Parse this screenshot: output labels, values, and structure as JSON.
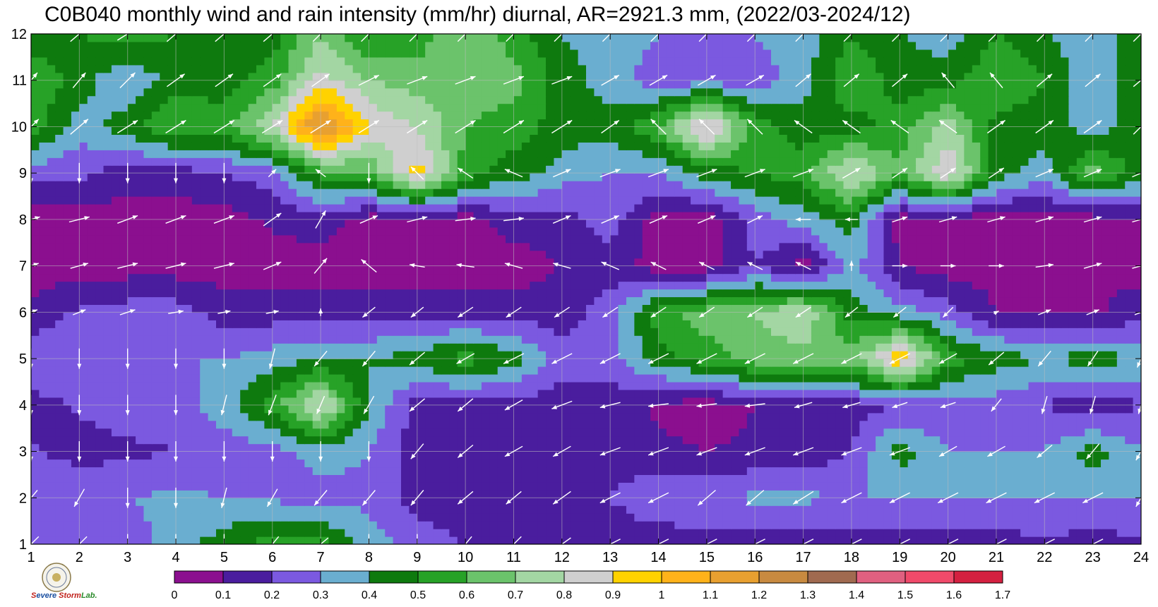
{
  "chart_data": {
    "type": "heatmap",
    "title": "C0B040 monthly wind and rain intensity (mm/hr) diurnal, AR=2921.3 mm, (2022/03-2024/12)",
    "xlabel": "",
    "ylabel": "",
    "x_ticks": [
      1,
      2,
      3,
      4,
      5,
      6,
      7,
      8,
      9,
      10,
      11,
      12,
      13,
      14,
      15,
      16,
      17,
      18,
      19,
      20,
      21,
      22,
      23,
      24
    ],
    "y_ticks": [
      1,
      2,
      3,
      4,
      5,
      6,
      7,
      8,
      9,
      10,
      11,
      12
    ],
    "xlim": [
      1,
      24
    ],
    "ylim": [
      1,
      12
    ],
    "grid": true,
    "colorbar": {
      "levels": [
        "0",
        "0.1",
        "0.2",
        "0.3",
        "0.4",
        "0.5",
        "0.6",
        "0.7",
        "0.8",
        "0.9",
        "1",
        "1.1",
        "1.2",
        "1.3",
        "1.4",
        "1.5",
        "1.6",
        "1.7"
      ],
      "colors": [
        "#8b0f8f",
        "#4a1d9e",
        "#7b59e0",
        "#6aaed0",
        "#0e7a0e",
        "#27a227",
        "#6bc36b",
        "#a3d6a3",
        "#cfcfcf",
        "#ffd200",
        "#ffb21a",
        "#e8a030",
        "#c88a40",
        "#a06a50",
        "#e06080",
        "#f04a6a",
        "#d42040"
      ]
    },
    "rain_intensity": [
      [
        0.25,
        0.25,
        0.25,
        0.35,
        0.45,
        0.55,
        0.55,
        0.35,
        0.25,
        0.2,
        0.1,
        0.12,
        0.12,
        0.12,
        0.15,
        0.12,
        0.12,
        0.15,
        0.15,
        0.15,
        0.15,
        0.18,
        0.15,
        0.18
      ],
      [
        0.3,
        0.3,
        0.3,
        0.32,
        0.3,
        0.28,
        0.25,
        0.28,
        0.15,
        0.15,
        0.12,
        0.15,
        0.2,
        0.3,
        0.3,
        0.32,
        0.32,
        0.3,
        0.3,
        0.3,
        0.3,
        0.3,
        0.3,
        0.3
      ],
      [
        0.22,
        0.15,
        0.18,
        0.2,
        0.25,
        0.25,
        0.35,
        0.3,
        0.15,
        0.15,
        0.15,
        0.15,
        0.15,
        0.12,
        0.1,
        0.12,
        0.12,
        0.2,
        0.45,
        0.3,
        0.3,
        0.3,
        0.45,
        0.3
      ],
      [
        0.15,
        0.22,
        0.25,
        0.25,
        0.35,
        0.55,
        0.85,
        0.4,
        0.15,
        0.15,
        0.15,
        0.15,
        0.15,
        0.08,
        0.05,
        0.1,
        0.15,
        0.15,
        0.2,
        0.22,
        0.25,
        0.2,
        0.12,
        0.2
      ],
      [
        0.3,
        0.3,
        0.3,
        0.3,
        0.3,
        0.35,
        0.4,
        0.4,
        0.45,
        0.55,
        0.45,
        0.25,
        0.25,
        0.45,
        0.55,
        0.65,
        0.65,
        0.65,
        1.0,
        0.55,
        0.45,
        0.4,
        0.45,
        0.4
      ],
      [
        0.12,
        0.22,
        0.25,
        0.25,
        0.15,
        0.15,
        0.15,
        0.15,
        0.15,
        0.15,
        0.15,
        0.15,
        0.25,
        0.55,
        0.65,
        0.7,
        0.8,
        0.45,
        0.35,
        0.25,
        0.1,
        0.08,
        0.08,
        0.15
      ],
      [
        0.05,
        0.05,
        0.05,
        0.05,
        0.05,
        0.05,
        0.05,
        0.05,
        0.05,
        0.05,
        0.05,
        0.1,
        0.15,
        0.05,
        0.05,
        0.2,
        0.05,
        0.35,
        0.1,
        0.05,
        0.05,
        0.05,
        0.1,
        0.05
      ],
      [
        0.05,
        0.05,
        0.05,
        0.05,
        0.05,
        0.12,
        0.15,
        0.05,
        0.05,
        0.05,
        0.15,
        0.15,
        0.25,
        0.05,
        0.05,
        0.25,
        0.35,
        0.45,
        0.05,
        0.05,
        0.05,
        0.05,
        0.05,
        0.1
      ],
      [
        0.25,
        0.22,
        0.15,
        0.15,
        0.2,
        0.25,
        0.55,
        0.6,
        0.95,
        0.55,
        0.45,
        0.35,
        0.3,
        0.3,
        0.45,
        0.5,
        0.55,
        0.85,
        0.6,
        0.9,
        0.45,
        0.35,
        0.65,
        0.45
      ],
      [
        0.55,
        0.35,
        0.45,
        0.6,
        0.55,
        0.8,
        1.25,
        0.9,
        0.8,
        0.6,
        0.55,
        0.45,
        0.45,
        0.6,
        0.95,
        0.55,
        0.45,
        0.45,
        0.55,
        0.75,
        0.45,
        0.45,
        0.35,
        0.45
      ],
      [
        0.6,
        0.45,
        0.3,
        0.45,
        0.45,
        0.55,
        0.85,
        0.7,
        0.65,
        0.65,
        0.65,
        0.45,
        0.35,
        0.25,
        0.25,
        0.25,
        0.35,
        0.6,
        0.45,
        0.45,
        0.6,
        0.5,
        0.3,
        0.5
      ],
      [
        0.4,
        0.5,
        0.55,
        0.5,
        0.5,
        0.45,
        0.7,
        0.5,
        0.55,
        0.7,
        0.55,
        0.4,
        0.35,
        0.3,
        0.3,
        0.3,
        0.35,
        0.5,
        0.4,
        0.35,
        0.5,
        0.4,
        0.35,
        0.45
      ]
    ],
    "wind_direction_note_free": true,
    "wind_u": [
      [
        -0.6,
        -0.6,
        0,
        0,
        0,
        -0.5,
        -0.6,
        0,
        0,
        -0.5,
        -0.6,
        -0.7,
        -0.8,
        -0.8,
        -0.8,
        -0.8,
        -0.8,
        -0.8,
        -0.8,
        -0.8,
        -0.8,
        -0.8,
        -0.8,
        -0.6
      ],
      [
        -0.5,
        -0.4,
        0,
        0,
        -0.2,
        -0.4,
        -0.5,
        -0.5,
        -0.5,
        -0.6,
        -0.6,
        -0.7,
        -0.8,
        -0.8,
        -0.7,
        -0.7,
        -0.8,
        -0.8,
        -0.8,
        -0.8,
        -0.8,
        -0.8,
        -0.8,
        -0.4
      ],
      [
        0,
        0,
        0,
        0,
        0,
        0,
        0,
        0,
        -0.5,
        -0.6,
        -0.7,
        -0.7,
        -0.8,
        -0.8,
        -0.8,
        -0.8,
        -0.8,
        -0.8,
        -0.8,
        -0.7,
        -0.7,
        -0.6,
        -0.5,
        -0.4
      ],
      [
        0,
        0,
        0,
        0,
        -0.2,
        -0.3,
        -0.3,
        -0.4,
        -0.6,
        -0.6,
        -0.7,
        -0.8,
        -0.8,
        -0.8,
        -0.8,
        -0.8,
        -0.7,
        -0.7,
        -0.6,
        -0.6,
        -0.4,
        -0.2,
        -0.2,
        -0.2
      ],
      [
        0,
        0,
        0,
        0,
        0,
        -0.2,
        -0.5,
        -0.5,
        -0.6,
        -0.7,
        -0.8,
        -0.8,
        -0.8,
        -0.8,
        -0.8,
        -0.8,
        -0.8,
        -0.8,
        -0.8,
        -0.7,
        -0.6,
        -0.5,
        -0.4,
        -0.3
      ],
      [
        0.5,
        0.5,
        0.6,
        0.6,
        0.5,
        0.5,
        0,
        -0.5,
        -0.5,
        -0.6,
        -0.6,
        -0.6,
        -0.6,
        -0.6,
        -0.6,
        -0.6,
        -0.6,
        -0.5,
        -0.5,
        -0.4,
        0.2,
        0.5,
        0.5,
        0.5
      ],
      [
        0.6,
        0.7,
        0.8,
        0.8,
        0.8,
        0.7,
        0.5,
        -0.6,
        -0.6,
        -0.7,
        -0.7,
        -0.7,
        -0.7,
        -0.6,
        -0.6,
        -0.6,
        -0.6,
        0,
        0.6,
        0.6,
        0.6,
        0.7,
        0.7,
        0.7
      ],
      [
        0.7,
        0.8,
        0.8,
        0.8,
        0.8,
        0.7,
        0.4,
        0.7,
        0.8,
        0.8,
        0.8,
        0.7,
        0.7,
        0.7,
        0.7,
        0.6,
        -0.6,
        -0.5,
        0.6,
        0.7,
        0.7,
        0.7,
        0.7,
        0.7
      ],
      [
        0,
        0,
        0,
        0,
        0,
        0.3,
        -0.4,
        0,
        -0.5,
        -0.6,
        -0.7,
        0.7,
        0.8,
        0.8,
        0.8,
        0.8,
        0.8,
        0.7,
        0.6,
        0.6,
        0.6,
        0.7,
        0.7,
        0.7
      ],
      [
        0.6,
        0.7,
        0.8,
        0.8,
        0.8,
        0.8,
        0.8,
        0.8,
        0.8,
        0.8,
        0.8,
        0.8,
        0.7,
        -0.6,
        -0.6,
        -0.6,
        -0.7,
        -0.7,
        -0.7,
        -0.7,
        0.7,
        0.7,
        0.7,
        0.6
      ],
      [
        0.5,
        0.5,
        0.6,
        0.7,
        0.7,
        0.7,
        0.7,
        0.8,
        0.8,
        0.8,
        0.8,
        0.8,
        0.7,
        0.7,
        0.7,
        0.7,
        0.6,
        0.6,
        0.6,
        -0.5,
        -0.5,
        0.6,
        0.6,
        0.6
      ],
      [
        0.6,
        0.7,
        0.8,
        0.7,
        0.7,
        0.7,
        0.6,
        0.6,
        0.6,
        0.6,
        0.6,
        0.6,
        0.6,
        0.6,
        0.6,
        0.6,
        0.6,
        0.6,
        0.6,
        0.6,
        0.6,
        0.6,
        0.6,
        0.6
      ]
    ],
    "wind_v": [
      [
        -0.6,
        -0.6,
        -0.8,
        -0.8,
        -0.8,
        -0.6,
        -0.5,
        -0.8,
        -0.8,
        -0.6,
        -0.6,
        -0.5,
        -0.4,
        -0.4,
        -0.4,
        -0.4,
        -0.4,
        -0.4,
        -0.4,
        -0.4,
        -0.4,
        -0.4,
        -0.4,
        -0.6
      ],
      [
        -0.6,
        -0.7,
        -0.8,
        -0.8,
        -0.8,
        -0.7,
        -0.6,
        -0.6,
        -0.6,
        -0.5,
        -0.5,
        -0.5,
        -0.4,
        -0.4,
        -0.6,
        -0.6,
        -0.5,
        -0.4,
        -0.4,
        -0.4,
        -0.4,
        -0.4,
        -0.4,
        -0.7
      ],
      [
        -0.8,
        -0.8,
        -0.8,
        -0.8,
        -0.8,
        -0.8,
        -0.8,
        -0.8,
        -0.6,
        -0.5,
        -0.4,
        -0.4,
        -0.3,
        -0.3,
        -0.3,
        -0.3,
        -0.3,
        -0.3,
        -0.3,
        -0.4,
        -0.4,
        -0.5,
        -0.6,
        -0.7
      ],
      [
        -0.8,
        -0.8,
        -0.8,
        -0.8,
        -0.8,
        -0.8,
        -0.7,
        -0.7,
        -0.5,
        -0.5,
        -0.4,
        -0.3,
        -0.2,
        -0.1,
        -0.1,
        -0.1,
        -0.2,
        -0.2,
        -0.2,
        -0.2,
        -0.5,
        -0.7,
        -0.7,
        -0.7
      ],
      [
        -0.8,
        -0.8,
        -0.8,
        -0.8,
        -0.8,
        -0.8,
        -0.6,
        -0.6,
        -0.5,
        -0.4,
        -0.4,
        -0.4,
        -0.4,
        -0.4,
        -0.4,
        -0.4,
        -0.4,
        -0.4,
        -0.4,
        -0.4,
        -0.5,
        -0.6,
        -0.6,
        -0.7
      ],
      [
        0.2,
        0.2,
        0.2,
        0.1,
        0.1,
        0.1,
        0.3,
        -0.4,
        -0.4,
        -0.4,
        -0.4,
        -0.4,
        -0.4,
        -0.4,
        -0.4,
        -0.4,
        -0.4,
        -0.4,
        -0.4,
        -0.4,
        0.1,
        0.2,
        0.2,
        0.2
      ],
      [
        0.2,
        0.2,
        0.2,
        0.2,
        0.2,
        0.3,
        0.6,
        0.5,
        0.1,
        0.1,
        0.2,
        0.2,
        0.3,
        0.3,
        0.3,
        0.3,
        0.3,
        0.4,
        0.0,
        0.0,
        0.0,
        0.1,
        0.2,
        0.2
      ],
      [
        0.2,
        0.2,
        0.3,
        0.3,
        0.3,
        0.5,
        0.7,
        0.3,
        0.2,
        0.1,
        0.1,
        0.3,
        0.3,
        0.3,
        0.3,
        0.3,
        0.0,
        0.0,
        0.2,
        0.2,
        0.2,
        0.2,
        0.2,
        0.2
      ],
      [
        -0.8,
        -0.8,
        -0.8,
        -0.8,
        -0.8,
        0.3,
        0.3,
        -0.8,
        0.5,
        0.4,
        0.3,
        0.3,
        0.3,
        0.3,
        0.3,
        0.3,
        0.3,
        0.4,
        0.4,
        0.4,
        0.4,
        0.3,
        0.3,
        0.3
      ],
      [
        0.6,
        0.6,
        0.5,
        0.5,
        0.5,
        0.5,
        0.5,
        0.5,
        0.5,
        0.5,
        0.5,
        0.5,
        0.5,
        0.6,
        0.6,
        0.6,
        0.5,
        0.5,
        0.5,
        0.5,
        0.5,
        0.5,
        0.5,
        0.6
      ],
      [
        0.6,
        0.6,
        0.6,
        0.5,
        0.5,
        0.5,
        0.5,
        0.4,
        0.3,
        0.3,
        0.3,
        0.3,
        0.4,
        0.4,
        0.4,
        0.4,
        0.5,
        0.5,
        0.5,
        0.6,
        0.6,
        0.5,
        0.5,
        0.5
      ],
      [
        0.6,
        0.6,
        0.5,
        0.6,
        0.6,
        0.6,
        0.6,
        0.6,
        0.6,
        0.6,
        0.6,
        0.6,
        0.6,
        0.6,
        0.6,
        0.6,
        0.6,
        0.6,
        0.6,
        0.6,
        0.6,
        0.6,
        0.6,
        0.6
      ]
    ]
  },
  "logo": {
    "text_s1": "S",
    "text_evere": "evere",
    "text_storm": "Storm",
    "text_lab": "Lab."
  }
}
